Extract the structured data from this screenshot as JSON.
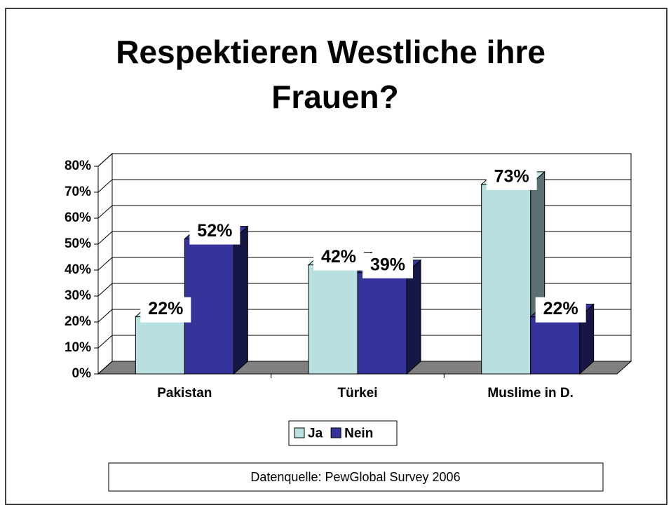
{
  "chart_data": {
    "type": "bar3d",
    "title": "Respektieren Westliche ihre Frauen?",
    "categories": [
      "Pakistan",
      "Türkei",
      "Muslime in D."
    ],
    "series": [
      {
        "name": "Ja",
        "color": "#b8e0e0",
        "values": [
          22,
          42,
          73
        ],
        "value_labels": [
          "22%",
          "42%",
          "73%"
        ]
      },
      {
        "name": "Nein",
        "color": "#333399",
        "values": [
          52,
          39,
          22
        ],
        "value_labels": [
          "52%",
          "39%",
          "22%"
        ]
      }
    ],
    "ylim": [
      0,
      80
    ],
    "yticks": [
      {
        "value": 0,
        "label": "0%"
      },
      {
        "value": 10,
        "label": "10%"
      },
      {
        "value": 20,
        "label": "20%"
      },
      {
        "value": 30,
        "label": "30%"
      },
      {
        "value": 40,
        "label": "40%"
      },
      {
        "value": 50,
        "label": "50%"
      },
      {
        "value": 60,
        "label": "60%"
      },
      {
        "value": 70,
        "label": "70%"
      },
      {
        "value": 80,
        "label": "80%"
      }
    ],
    "grid": true,
    "legend": "bottom",
    "source": "Datenquelle: PewGlobal Survey 2006"
  }
}
